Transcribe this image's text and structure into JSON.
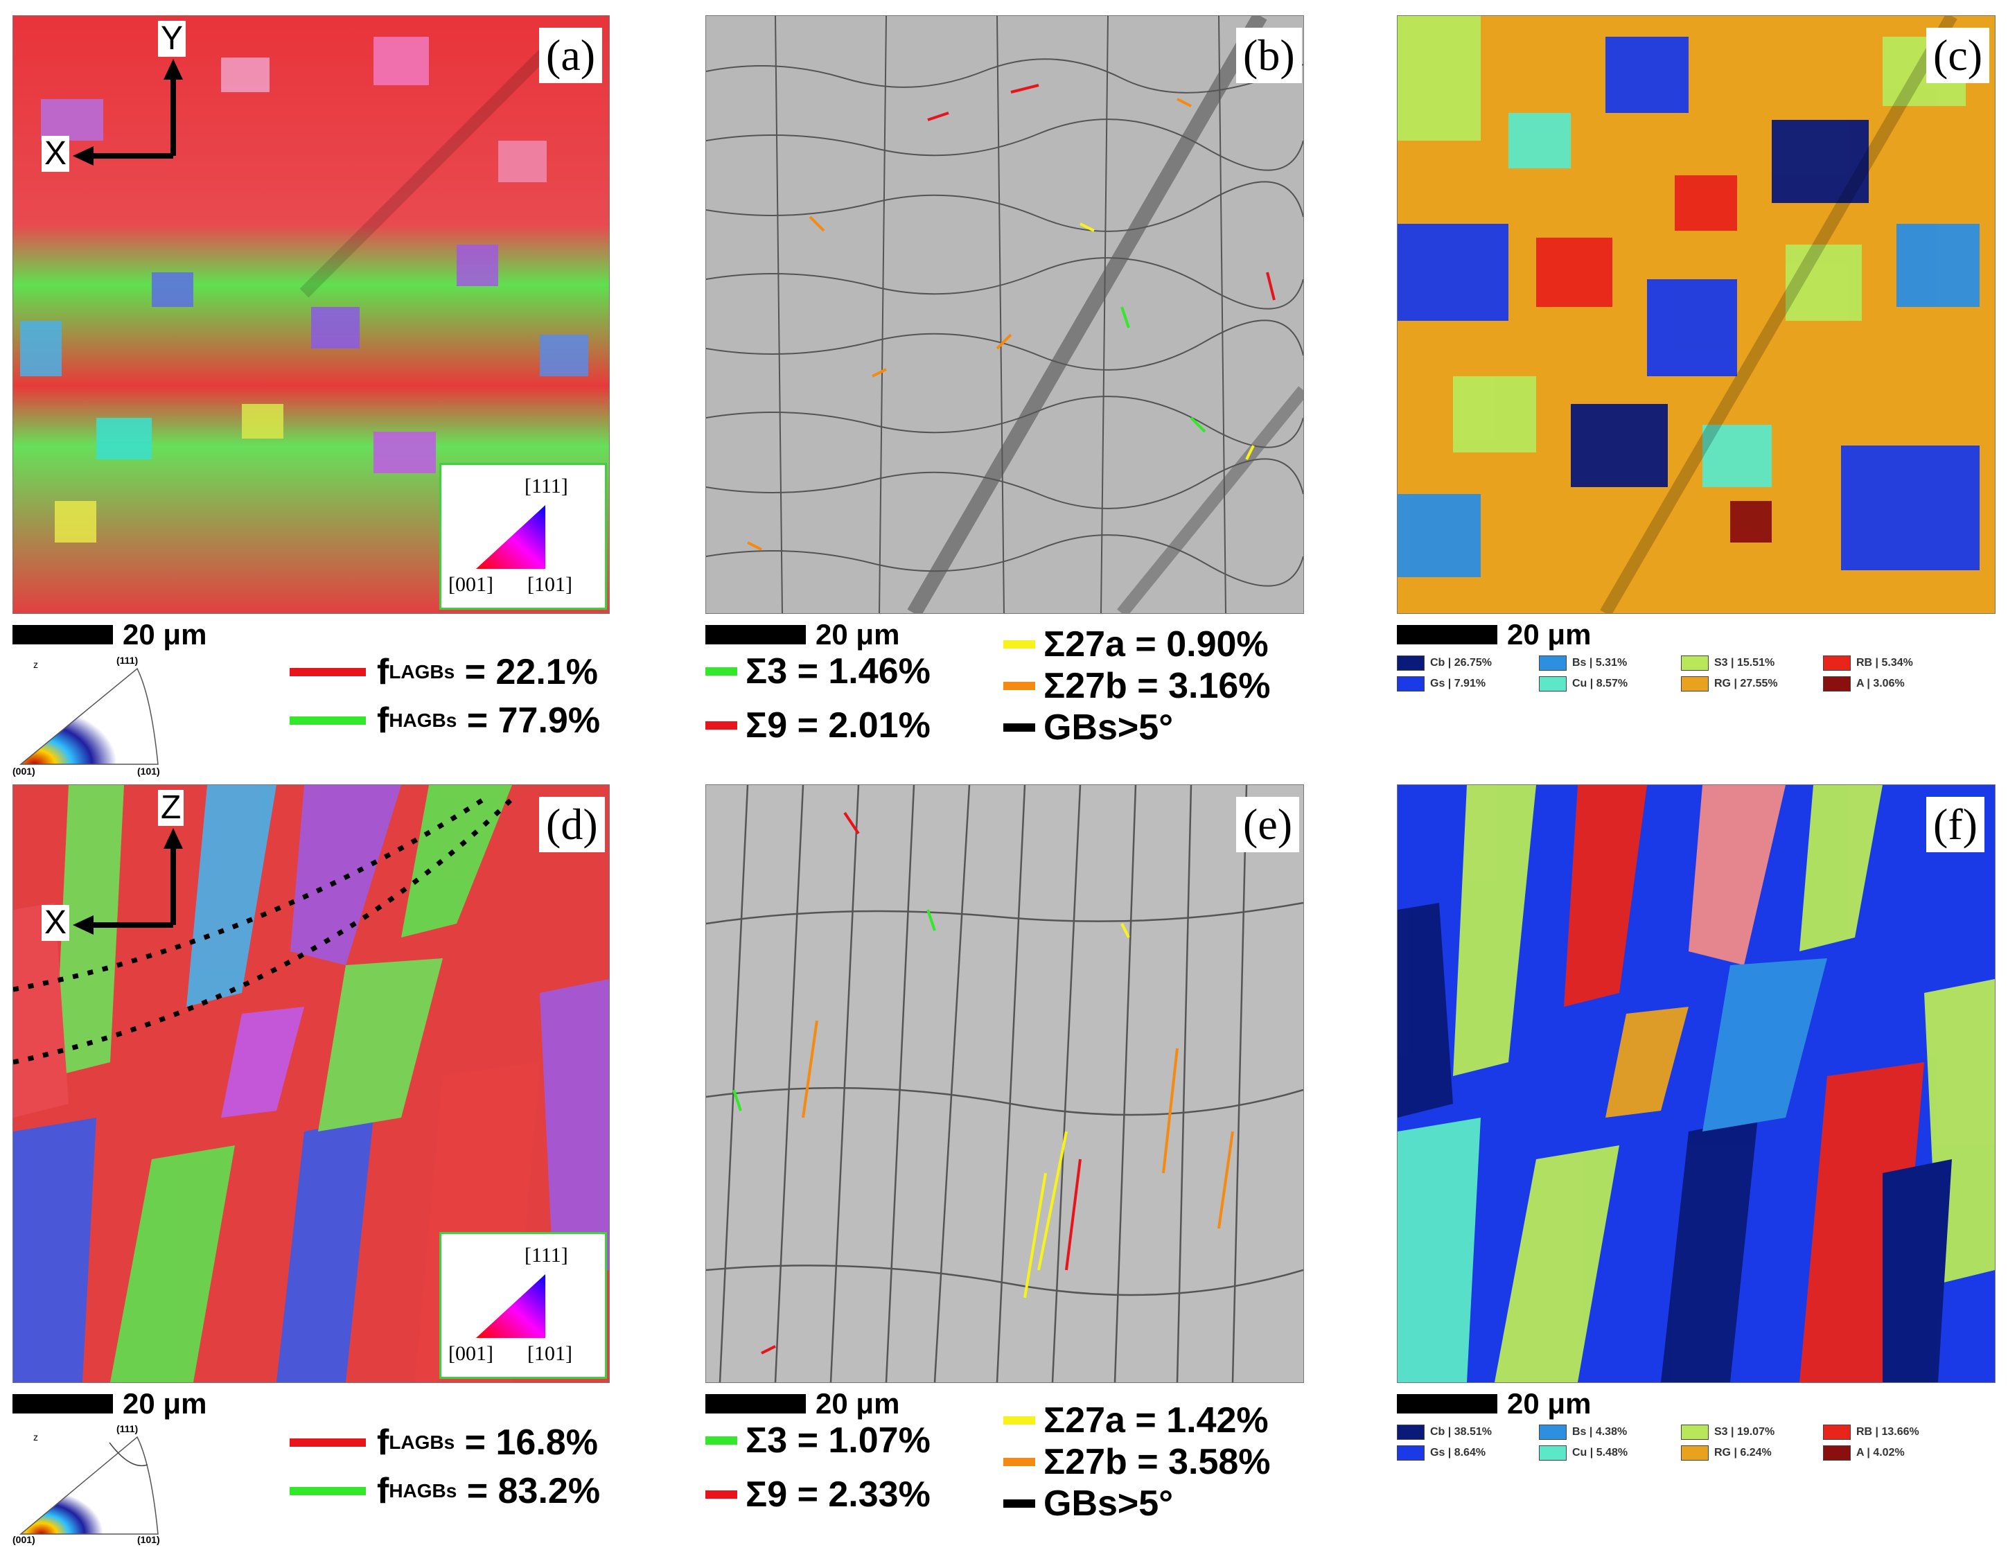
{
  "panels": {
    "a": {
      "label": "(a)",
      "axis_h": "X",
      "axis_v": "Y"
    },
    "b": {
      "label": "(b)"
    },
    "c": {
      "label": "(c)"
    },
    "d": {
      "label": "(d)",
      "axis_h": "X",
      "axis_v": "Z"
    },
    "e": {
      "label": "(e)"
    },
    "f": {
      "label": "(f)"
    }
  },
  "scale_bar": "20 μm",
  "ipf_key": {
    "top": "[111]",
    "left": "[001]",
    "right": "[101]"
  },
  "pole_figure": {
    "axis": "z",
    "top": "(111)",
    "left": "(001)",
    "right": "(101)"
  },
  "colors": {
    "lagb": "#e8141b",
    "hagb": "#33e82a",
    "s3": "#33e82a",
    "s9": "#e8141b",
    "s27a": "#f6f21c",
    "s27b": "#f58a12",
    "gb": "#000000",
    "ipf_border": "#3fcf3f"
  },
  "top_row": {
    "lagbs": {
      "label": "f",
      "sub": "LAGBs",
      "value": " = 22.1%"
    },
    "hagbs": {
      "label": "f",
      "sub": "HAGBs",
      "value": " = 77.9%"
    },
    "csl": {
      "s3": "Σ3 = 1.46%",
      "s9": "Σ9 = 2.01%",
      "s27a": "Σ27a = 0.90%",
      "s27b": "Σ27b = 3.16%",
      "gb": "GBs>5°"
    },
    "texture": [
      {
        "text": "Cb | 26.75%",
        "color": "#0a1a7a"
      },
      {
        "text": "Bs | 5.31%",
        "color": "#2d8fe0"
      },
      {
        "text": "S3 | 15.51%",
        "color": "#b8e85a"
      },
      {
        "text": "RB | 5.34%",
        "color": "#e8241b"
      },
      {
        "text": "Gs | 7.91%",
        "color": "#1a3ae8"
      },
      {
        "text": "Cu | 8.57%",
        "color": "#5ce8c8"
      },
      {
        "text": "RG | 27.55%",
        "color": "#e8a21e"
      },
      {
        "text": "A | 3.06%",
        "color": "#8a1010"
      }
    ]
  },
  "bottom_row": {
    "lagbs": {
      "label": "f",
      "sub": "LAGBs",
      "value": " = 16.8%"
    },
    "hagbs": {
      "label": "f",
      "sub": "HAGBs",
      "value": " = 83.2%"
    },
    "csl": {
      "s3": "Σ3 = 1.07%",
      "s9": "Σ9 = 2.33%",
      "s27a": "Σ27a = 1.42%",
      "s27b": "Σ27b = 3.58%",
      "gb": "GBs>5°"
    },
    "texture": [
      {
        "text": "Cb | 38.51%",
        "color": "#0a1a7a"
      },
      {
        "text": "Bs | 4.38%",
        "color": "#2d8fe0"
      },
      {
        "text": "S3 | 19.07%",
        "color": "#b8e85a"
      },
      {
        "text": "RB | 13.66%",
        "color": "#e8241b"
      },
      {
        "text": "Gs | 8.64%",
        "color": "#1a3ae8"
      },
      {
        "text": "Cu | 5.48%",
        "color": "#5ce8c8"
      },
      {
        "text": "RG | 6.24%",
        "color": "#e8a21e"
      },
      {
        "text": "A | 4.02%",
        "color": "#8a1010"
      }
    ]
  }
}
